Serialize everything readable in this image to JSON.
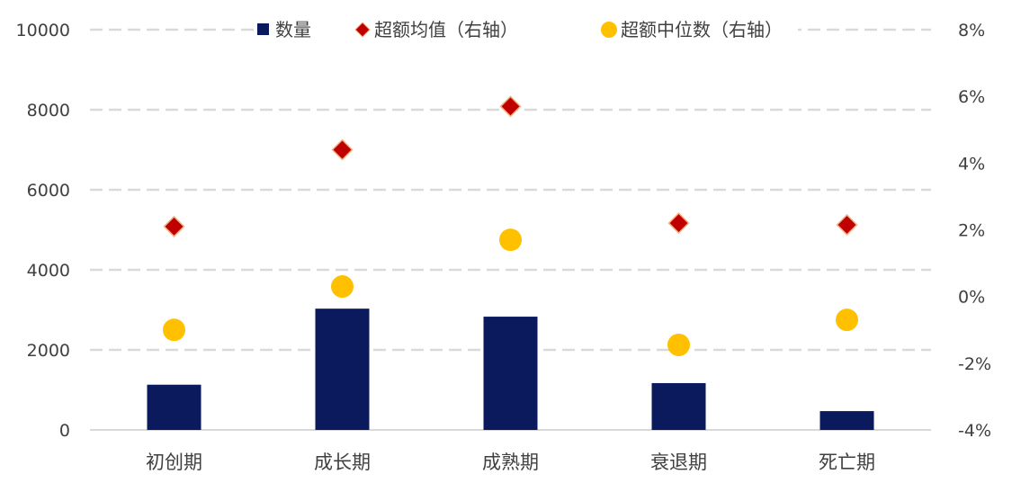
{
  "chart_data": {
    "type": "bar",
    "categories": [
      "初创期",
      "成长期",
      "成熟期",
      "衰退期",
      "死亡期"
    ],
    "series": [
      {
        "name": "数量",
        "type": "bar",
        "axis": "left",
        "color": "#0a1a5c",
        "values": [
          1130,
          3030,
          2830,
          1170,
          470
        ]
      },
      {
        "name": "超额均值（右轴）",
        "type": "scatter",
        "marker": "diamond",
        "axis": "right",
        "color": "#c00000",
        "values": [
          2.1,
          4.4,
          5.7,
          2.2,
          2.15
        ]
      },
      {
        "name": "超额中位数（右轴）",
        "type": "scatter",
        "marker": "circle",
        "axis": "right",
        "color": "#ffc000",
        "values": [
          -1.0,
          0.3,
          1.7,
          -1.45,
          -0.7
        ]
      }
    ],
    "left_axis": {
      "min": 0,
      "max": 10000,
      "ticks": [
        "0",
        "2000",
        "4000",
        "6000",
        "8000",
        "10000"
      ]
    },
    "right_axis": {
      "min": -4,
      "max": 8,
      "ticks": [
        "-4%",
        "-2%",
        "0%",
        "2%",
        "4%",
        "6%",
        "8%"
      ]
    },
    "grid": true,
    "legend_position": "top"
  }
}
